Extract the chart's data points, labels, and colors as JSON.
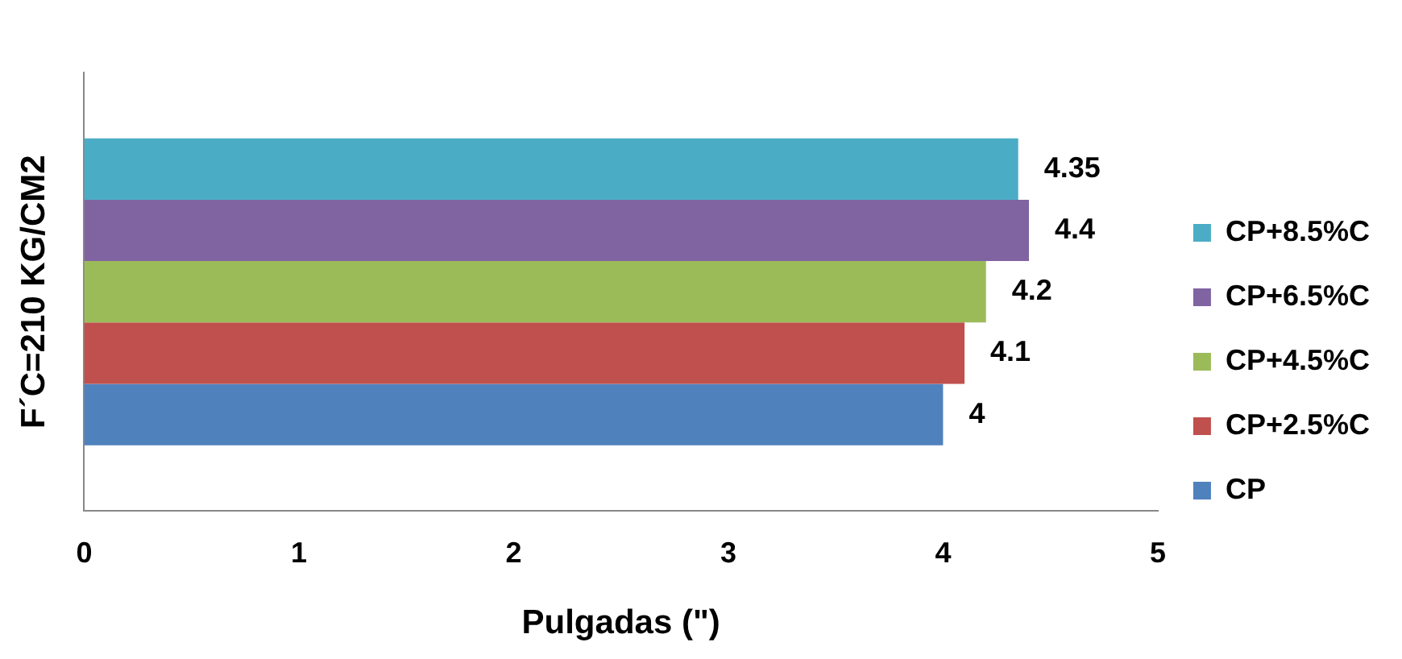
{
  "chart_data": {
    "type": "bar",
    "orientation": "horizontal",
    "ylabel": "F´C=210 KG/CM2",
    "xlabel": "Pulgadas (\")",
    "categories": [
      null
    ],
    "series": [
      {
        "name": "CP+8.5%C",
        "color": "#4bacc6",
        "values": [
          4.35
        ]
      },
      {
        "name": "CP+6.5%C",
        "color": "#8064a2",
        "values": [
          4.4
        ]
      },
      {
        "name": "CP+4.5%C",
        "color": "#9bbb59",
        "values": [
          4.2
        ]
      },
      {
        "name": "CP+2.5%C",
        "color": "#c0504d",
        "values": [
          4.1
        ]
      },
      {
        "name": "CP",
        "color": "#4f81bd",
        "values": [
          4
        ]
      }
    ],
    "xlim": [
      0,
      5
    ],
    "xticks": [
      0,
      1,
      2,
      3,
      4,
      5
    ],
    "grid": false,
    "legend": "right",
    "data_labels": true
  }
}
